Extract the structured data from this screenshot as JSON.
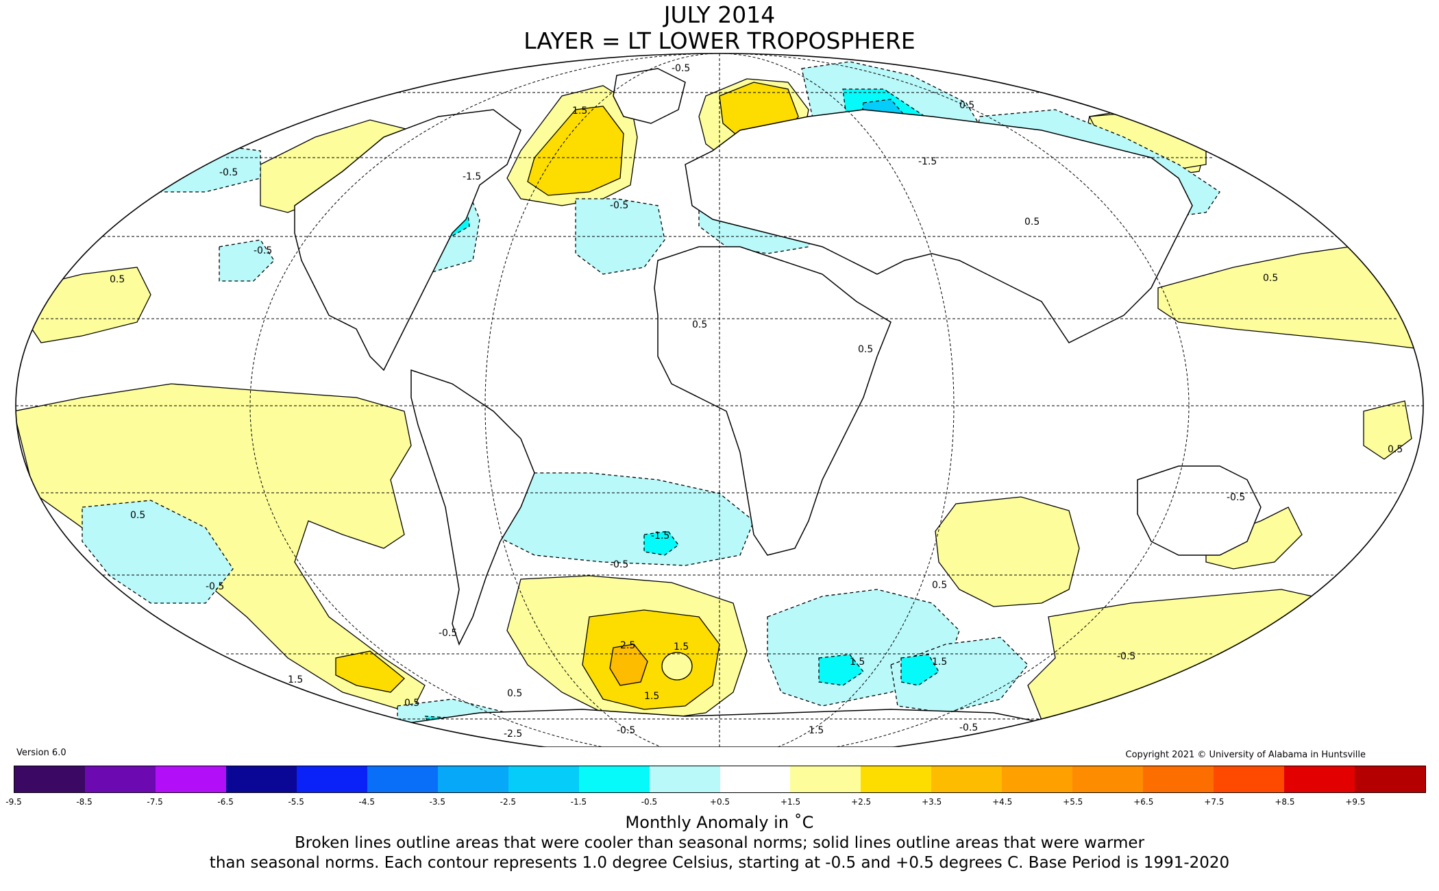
{
  "title_line1": "JULY 2014",
  "title_line2": "LAYER = LT LOWER TROPOSPHERE",
  "version": "Version 6.0",
  "copyright": "Copyright 2021 © University of Alabama in Huntsville",
  "colorbar": {
    "colors": [
      "#3b0863",
      "#6c09b0",
      "#b20ff8",
      "#0a0696",
      "#0a22f8",
      "#0a6ff8",
      "#07a8f8",
      "#05ccf8",
      "#07fafa",
      "#baf9fa",
      "#ffffff",
      "#fdfd9b",
      "#fddd00",
      "#fdbc00",
      "#fda000",
      "#fd8c00",
      "#fd6e00",
      "#fd4a00",
      "#e20000",
      "#b40000"
    ],
    "tick_labels": [
      "-9.5",
      "-8.5",
      "-7.5",
      "-6.5",
      "-5.5",
      "-4.5",
      "-3.5",
      "-2.5",
      "-1.5",
      "-0.5",
      "+0.5",
      "+1.5",
      "+2.5",
      "+3.5",
      "+4.5",
      "+5.5",
      "+6.5",
      "+7.5",
      "+8.5",
      "+9.5"
    ],
    "first_tick_label": "-9.5",
    "unit_label": "Monthly Anomaly in ˚C"
  },
  "note_line1": "Broken lines outline areas that were cooler than seasonal norms; solid lines outline areas that were warmer",
  "note_line2": "than seasonal norms. Each contour represents 1.0 degree Celsius, starting at -0.5 and +0.5 degrees C. Base Period is 1991-2020",
  "contour_labels": [
    "-0.5",
    "0.5",
    "1.5",
    "-1.5",
    "2.5",
    "-2.5"
  ]
}
